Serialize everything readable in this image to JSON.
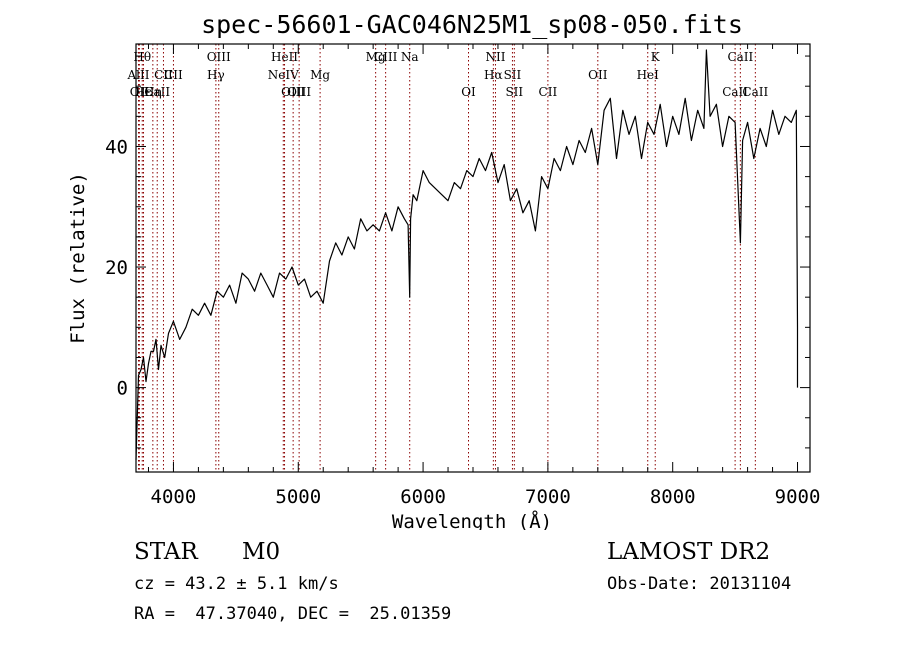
{
  "chart_data": {
    "type": "line",
    "title": "spec-56601-GAC046N25M1_sp08-050.fits",
    "xlabel": "Wavelength (Å)",
    "ylabel": "Flux (relative)",
    "xlim": [
      3700,
      9100
    ],
    "ylim": [
      -14,
      57
    ],
    "x_ticks": [
      4000,
      5000,
      6000,
      7000,
      8000,
      9000
    ],
    "y_ticks": [
      0,
      20,
      40
    ],
    "series": [
      {
        "x": [
          3700,
          3720,
          3740,
          3760,
          3780,
          3800,
          3820,
          3840,
          3860,
          3880,
          3900,
          3930,
          3960,
          4000,
          4050,
          4100,
          4150,
          4200,
          4250,
          4300,
          4350,
          4400,
          4450,
          4500,
          4550,
          4600,
          4650,
          4700,
          4750,
          4800,
          4850,
          4900,
          4950,
          5000,
          5050,
          5100,
          5150,
          5200,
          5250,
          5300,
          5350,
          5400,
          5450,
          5500,
          5550,
          5600,
          5650,
          5700,
          5750,
          5800,
          5850,
          5880,
          5893,
          5900,
          5920,
          5950,
          6000,
          6050,
          6100,
          6150,
          6200,
          6250,
          6300,
          6350,
          6400,
          6450,
          6500,
          6550,
          6600,
          6650,
          6700,
          6750,
          6800,
          6850,
          6900,
          6950,
          7000,
          7050,
          7100,
          7150,
          7200,
          7250,
          7300,
          7350,
          7400,
          7450,
          7500,
          7550,
          7600,
          7650,
          7700,
          7750,
          7800,
          7850,
          7900,
          7950,
          8000,
          8050,
          8100,
          8150,
          8200,
          8250,
          8270,
          8300,
          8350,
          8400,
          8450,
          8500,
          8542,
          8560,
          8600,
          8650,
          8700,
          8750,
          8800,
          8850,
          8900,
          8950,
          8990,
          9000,
          9000
        ],
        "y": [
          -12,
          2,
          3,
          5,
          1,
          4,
          6,
          6,
          8,
          3,
          7,
          5,
          9,
          11,
          8,
          10,
          13,
          12,
          14,
          12,
          16,
          15,
          17,
          14,
          19,
          18,
          16,
          19,
          17,
          15,
          19,
          18,
          20,
          17,
          18,
          15,
          16,
          14,
          21,
          24,
          22,
          25,
          23,
          28,
          26,
          27,
          26,
          29,
          26,
          30,
          28,
          27,
          15,
          28,
          32,
          31,
          36,
          34,
          33,
          32,
          31,
          34,
          33,
          36,
          35,
          38,
          36,
          39,
          34,
          37,
          31,
          33,
          29,
          31,
          26,
          35,
          33,
          38,
          36,
          40,
          37,
          41,
          39,
          43,
          37,
          46,
          48,
          38,
          46,
          42,
          45,
          38,
          44,
          42,
          47,
          40,
          45,
          42,
          48,
          41,
          46,
          43,
          56,
          45,
          47,
          40,
          45,
          44,
          24,
          41,
          44,
          38,
          43,
          40,
          46,
          42,
          45,
          44,
          46,
          10,
          0
        ]
      }
    ],
    "line_markers": [
      {
        "label": "Hθ",
        "x": 3750,
        "row": 1
      },
      {
        "label": "AlII",
        "x": 3720,
        "row": 2
      },
      {
        "label": "OII",
        "x": 3727,
        "row": 3
      },
      {
        "label": "Hε",
        "x": 3760,
        "row": 3
      },
      {
        "label": "Hη",
        "x": 3835,
        "row": 3
      },
      {
        "label": "CaII",
        "x": 3870,
        "row": 3
      },
      {
        "label": "CII",
        "x": 3920,
        "row": 2
      },
      {
        "label": "CII",
        "x": 4000,
        "row": 2
      },
      {
        "label": "OIII",
        "x": 4363,
        "row": 1
      },
      {
        "label": "Hγ",
        "x": 4340,
        "row": 2
      },
      {
        "label": "HeII",
        "x": 4890,
        "row": 1
      },
      {
        "label": "NeIV",
        "x": 4880,
        "row": 2
      },
      {
        "label": "OIII",
        "x": 4959,
        "row": 3
      },
      {
        "label": "OIII",
        "x": 5007,
        "row": 3
      },
      {
        "label": "Mg",
        "x": 5175,
        "row": 2
      },
      {
        "label": "Mg",
        "x": 5620,
        "row": 1
      },
      {
        "label": "CIII",
        "x": 5700,
        "row": 1
      },
      {
        "label": "Na",
        "x": 5893,
        "row": 1
      },
      {
        "label": "OI",
        "x": 6364,
        "row": 3
      },
      {
        "label": "NII",
        "x": 6580,
        "row": 1
      },
      {
        "label": "Hα",
        "x": 6563,
        "row": 2
      },
      {
        "label": "SII",
        "x": 6716,
        "row": 2
      },
      {
        "label": "SII",
        "x": 6731,
        "row": 3
      },
      {
        "label": "CII",
        "x": 7000,
        "row": 3
      },
      {
        "label": "OII",
        "x": 7400,
        "row": 2
      },
      {
        "label": "K",
        "x": 7860,
        "row": 1
      },
      {
        "label": "HeI",
        "x": 7800,
        "row": 2
      },
      {
        "label": "CaII",
        "x": 8542,
        "row": 1
      },
      {
        "label": "CaII",
        "x": 8500,
        "row": 3
      },
      {
        "label": "CaII",
        "x": 8662,
        "row": 3
      }
    ],
    "grid": false,
    "legend": "none"
  },
  "info": {
    "object_class": "STAR",
    "subclass": "M0",
    "survey": "LAMOST DR2",
    "redshift": "cz = 43.2 ± 5.1 km/s",
    "obs_date": "Obs-Date: 20131104",
    "coords": "RA =  47.37040, DEC =  25.01359"
  },
  "colors": {
    "spectrum": "#000000",
    "marker_line": "#8b0000",
    "axes": "#000000"
  }
}
